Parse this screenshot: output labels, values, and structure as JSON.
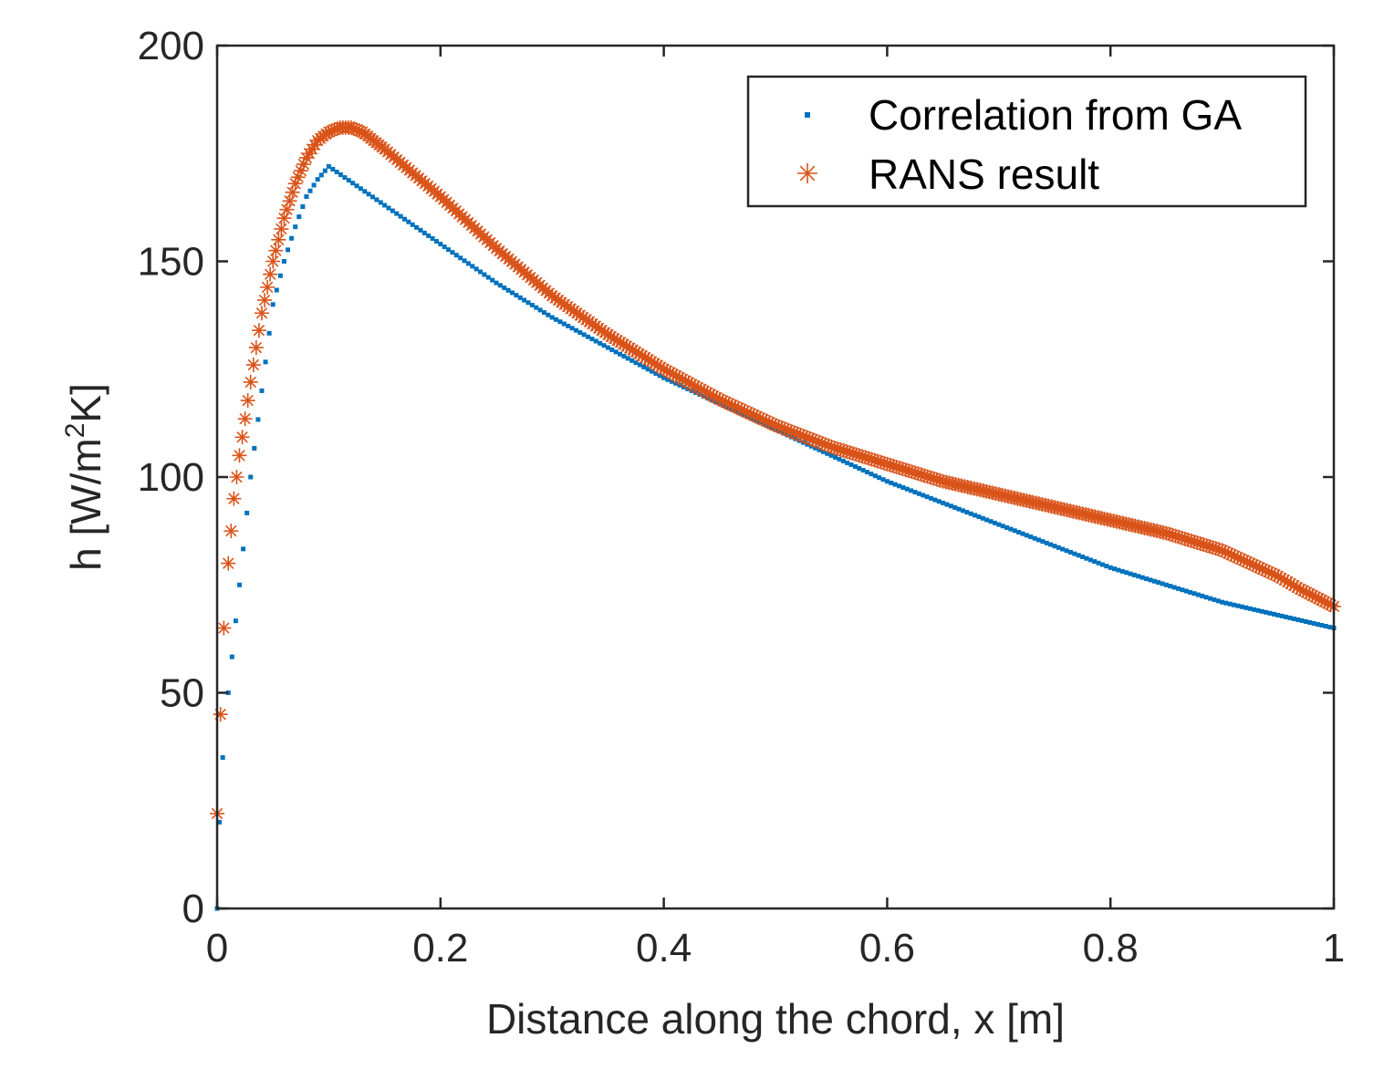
{
  "chart_data": {
    "type": "scatter",
    "title": "",
    "xlabel": "Distance along the chord, x [m]",
    "ylabel": {
      "prefix": "h [W/m",
      "sup": "2",
      "suffix": "K]"
    },
    "xlim": [
      0,
      1
    ],
    "ylim": [
      0,
      200
    ],
    "xticks": [
      0,
      0.2,
      0.4,
      0.6,
      0.8,
      1
    ],
    "xtick_labels": [
      "0",
      "0.2",
      "0.4",
      "0.6",
      "0.8",
      "1"
    ],
    "yticks": [
      0,
      50,
      100,
      150,
      200
    ],
    "ytick_labels": [
      "0",
      "50",
      "100",
      "150",
      "200"
    ],
    "grid": false,
    "legend_position": "top-right",
    "series": [
      {
        "name": "Correlation from GA",
        "marker": "dot",
        "color": "#0072BD",
        "x": [
          0,
          0.002,
          0.005,
          0.01,
          0.02,
          0.03,
          0.04,
          0.05,
          0.06,
          0.07,
          0.08,
          0.09,
          0.1,
          0.15,
          0.2,
          0.25,
          0.3,
          0.35,
          0.4,
          0.45,
          0.5,
          0.55,
          0.6,
          0.65,
          0.7,
          0.75,
          0.8,
          0.85,
          0.9,
          0.95,
          1.0
        ],
        "y": [
          0,
          20,
          35,
          50,
          75,
          100,
          120,
          140,
          150,
          158,
          165,
          169,
          172,
          163,
          154,
          145,
          137,
          130,
          123,
          117,
          111,
          105,
          99,
          94,
          89,
          84,
          79,
          75,
          71,
          68,
          65
        ]
      },
      {
        "name": "RANS result",
        "marker": "asterisk",
        "color": "#D95319",
        "x": [
          0,
          0.003,
          0.006,
          0.01,
          0.015,
          0.02,
          0.03,
          0.04,
          0.05,
          0.06,
          0.07,
          0.08,
          0.09,
          0.1,
          0.11,
          0.12,
          0.13,
          0.14,
          0.15,
          0.2,
          0.25,
          0.3,
          0.35,
          0.4,
          0.45,
          0.5,
          0.55,
          0.6,
          0.65,
          0.7,
          0.75,
          0.8,
          0.85,
          0.9,
          0.95,
          0.97,
          1.0
        ],
        "y": [
          22,
          45,
          65,
          80,
          95,
          105,
          122,
          138,
          150,
          160,
          168,
          174,
          178,
          180,
          181,
          181,
          180,
          178,
          176,
          165,
          153,
          142,
          133,
          125,
          118,
          112,
          107,
          103,
          99,
          96,
          93,
          90,
          87,
          83,
          77,
          74,
          70
        ]
      }
    ]
  }
}
